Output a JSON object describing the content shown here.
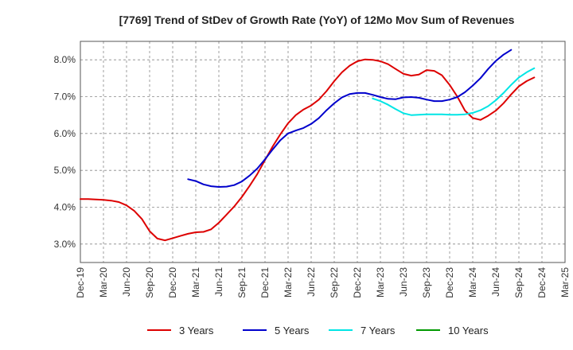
{
  "chart_data": {
    "type": "line",
    "title": "[7769]  Trend of StDev of Growth Rate (YoY) of 12Mo Mov Sum of Revenues",
    "xlabel": "",
    "ylabel": "",
    "x_ticks": [
      "Dec-19",
      "Mar-20",
      "Jun-20",
      "Sep-20",
      "Dec-20",
      "Mar-21",
      "Jun-21",
      "Sep-21",
      "Dec-21",
      "Mar-22",
      "Jun-22",
      "Sep-22",
      "Dec-22",
      "Mar-23",
      "Jun-23",
      "Sep-23",
      "Dec-23",
      "Mar-24",
      "Jun-24",
      "Sep-24",
      "Dec-24",
      "Mar-25"
    ],
    "x_range": [
      0,
      63
    ],
    "ylim": [
      2.5,
      8.5
    ],
    "y_ticks": [
      3.0,
      4.0,
      5.0,
      6.0,
      7.0,
      8.0
    ],
    "y_tick_labels": [
      "3.0%",
      "4.0%",
      "5.0%",
      "6.0%",
      "7.0%",
      "8.0%"
    ],
    "grid": true,
    "legend_position": "bottom",
    "series": [
      {
        "name": "3 Years",
        "color": "#dd0000",
        "start_index": 0,
        "values": [
          4.22,
          4.22,
          4.21,
          4.2,
          4.18,
          4.14,
          4.05,
          3.9,
          3.68,
          3.35,
          3.15,
          3.1,
          3.16,
          3.22,
          3.28,
          3.32,
          3.33,
          3.4,
          3.58,
          3.8,
          4.02,
          4.28,
          4.58,
          4.9,
          5.28,
          5.65,
          5.98,
          6.28,
          6.5,
          6.65,
          6.76,
          6.92,
          7.15,
          7.42,
          7.66,
          7.84,
          7.96,
          8.01,
          8.0,
          7.96,
          7.88,
          7.75,
          7.62,
          7.57,
          7.6,
          7.72,
          7.7,
          7.58,
          7.32,
          7.0,
          6.62,
          6.42,
          6.37,
          6.48,
          6.62,
          6.82,
          7.06,
          7.28,
          7.42,
          7.52
        ]
      },
      {
        "name": "5 Years",
        "color": "#0000cc",
        "start_index": 14,
        "values": [
          4.76,
          4.71,
          4.62,
          4.57,
          4.55,
          4.56,
          4.6,
          4.7,
          4.86,
          5.05,
          5.3,
          5.57,
          5.82,
          6.0,
          6.08,
          6.15,
          6.26,
          6.42,
          6.63,
          6.82,
          6.98,
          7.07,
          7.1,
          7.1,
          7.05,
          6.99,
          6.94,
          6.93,
          6.98,
          6.99,
          6.97,
          6.92,
          6.88,
          6.88,
          6.92,
          6.99,
          7.12,
          7.3,
          7.5,
          7.75,
          7.97,
          8.14,
          8.27
        ]
      },
      {
        "name": "7 Years",
        "color": "#00e5e5",
        "start_index": 38,
        "values": [
          6.95,
          6.88,
          6.78,
          6.66,
          6.55,
          6.5,
          6.51,
          6.52,
          6.52,
          6.52,
          6.51,
          6.51,
          6.52,
          6.56,
          6.63,
          6.74,
          6.9,
          7.1,
          7.32,
          7.52,
          7.66,
          7.77
        ]
      },
      {
        "name": "10 Years",
        "color": "#009900",
        "start_index": 0,
        "values": []
      }
    ]
  }
}
